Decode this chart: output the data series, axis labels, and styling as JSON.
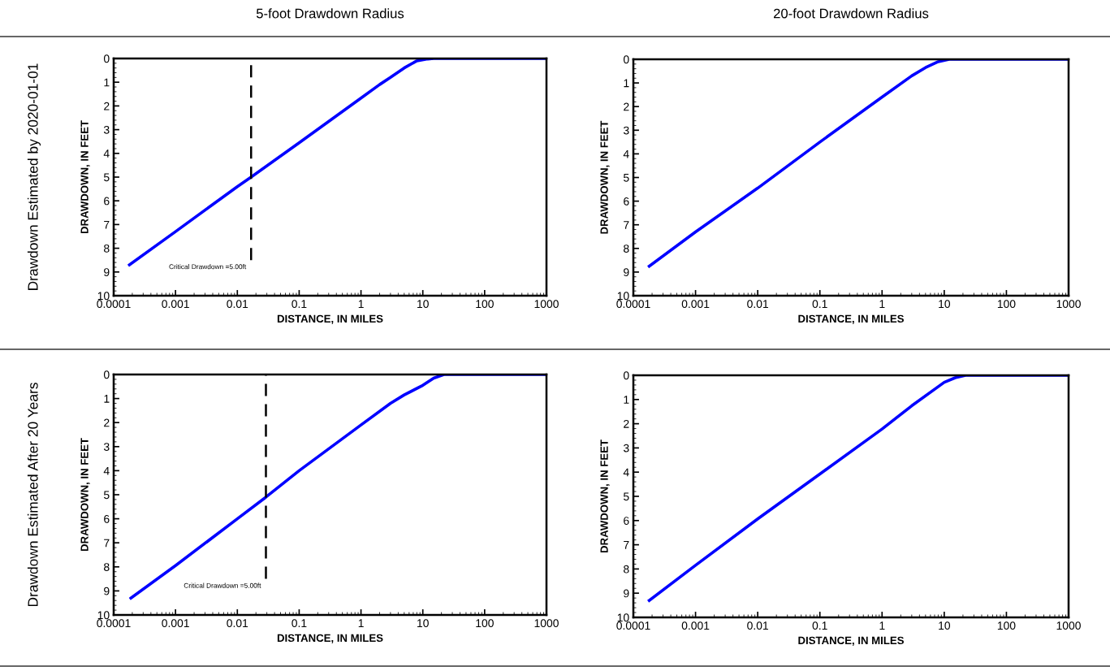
{
  "chart_data": [
    {
      "type": "line",
      "title": "5-foot Drawdown Radius",
      "xlabel": "DISTANCE, IN MILES",
      "ylabel": "DRAWDOWN, IN FEET",
      "annotations": [
        "Drawdown Estimated by 2020-01-01",
        "Critical Drawdown =5.00ft"
      ],
      "log": "x",
      "xlim": [
        0.0001,
        1000
      ],
      "xticks": [
        0.0001,
        0.001,
        0.01,
        0.1,
        1,
        10,
        100,
        1000
      ],
      "ylim": [
        10,
        0
      ],
      "yticks": [
        0,
        1,
        2,
        3,
        4,
        5,
        6,
        7,
        8,
        9,
        10
      ],
      "grid": false,
      "legend": false,
      "marker": "none",
      "line_style": "solid",
      "series": [
        {
          "color": "#0000ff",
          "x": [
            0.00018,
            0.001,
            0.01,
            0.0167,
            0.1,
            1,
            2,
            3,
            5,
            8,
            12,
            15,
            1000
          ],
          "values": [
            8.7,
            7.3,
            5.4,
            5.0,
            3.55,
            1.67,
            1.1,
            0.8,
            0.4,
            0.1,
            0.02,
            0,
            0
          ]
        }
      ],
      "ref_lines": [
        {
          "axis": "x",
          "value": 0.0167,
          "color": "#000000",
          "line_style": "dashed"
        }
      ]
    },
    {
      "type": "line",
      "title": "20-foot Drawdown Radius",
      "xlabel": "DISTANCE, IN MILES",
      "ylabel": "DRAWDOWN, IN FEET",
      "log": "x",
      "xlim": [
        0.0001,
        1000
      ],
      "xticks": [
        0.0001,
        0.001,
        0.01,
        0.1,
        1,
        10,
        100,
        1000
      ],
      "ylim": [
        10,
        0
      ],
      "yticks": [
        0,
        1,
        2,
        3,
        4,
        5,
        6,
        7,
        8,
        9,
        10
      ],
      "grid": false,
      "legend": false,
      "marker": "none",
      "line_style": "solid",
      "series": [
        {
          "color": "#0000ff",
          "x": [
            0.00018,
            0.001,
            0.01,
            0.1,
            1,
            3,
            5,
            8,
            12,
            1000
          ],
          "values": [
            8.75,
            7.3,
            5.45,
            3.5,
            1.6,
            0.7,
            0.35,
            0.1,
            0,
            0
          ]
        }
      ]
    },
    {
      "type": "line",
      "xlabel": "DISTANCE, IN MILES",
      "ylabel": "DRAWDOWN, IN FEET",
      "annotations": [
        "Drawdown Estimated After 20 Years",
        "Critical Drawdown =5.00ft"
      ],
      "log": "x",
      "xlim": [
        0.0001,
        1000
      ],
      "xticks": [
        0.0001,
        0.001,
        0.01,
        0.1,
        1,
        10,
        100,
        1000
      ],
      "ylim": [
        10,
        0
      ],
      "yticks": [
        0,
        1,
        2,
        3,
        4,
        5,
        6,
        7,
        8,
        9,
        10
      ],
      "grid": false,
      "legend": false,
      "marker": "none",
      "line_style": "solid",
      "series": [
        {
          "color": "#0000ff",
          "x": [
            0.00019,
            0.001,
            0.01,
            0.029,
            0.1,
            1,
            3,
            5,
            10,
            15,
            22,
            1000
          ],
          "values": [
            9.3,
            7.95,
            6.0,
            5.1,
            4.0,
            2.1,
            1.2,
            0.85,
            0.45,
            0.15,
            0,
            0
          ]
        }
      ],
      "ref_lines": [
        {
          "axis": "x",
          "value": 0.029,
          "color": "#000000",
          "line_style": "dashed"
        }
      ]
    },
    {
      "type": "line",
      "xlabel": "DISTANCE, IN MILES",
      "ylabel": "DRAWDOWN, IN FEET",
      "log": "x",
      "xlim": [
        0.0001,
        1000
      ],
      "xticks": [
        0.0001,
        0.001,
        0.01,
        0.1,
        1,
        10,
        100,
        1000
      ],
      "ylim": [
        10,
        0
      ],
      "yticks": [
        0,
        1,
        2,
        3,
        4,
        5,
        6,
        7,
        8,
        9,
        10
      ],
      "grid": false,
      "legend": false,
      "marker": "none",
      "line_style": "solid",
      "series": [
        {
          "color": "#0000ff",
          "x": [
            0.00018,
            0.001,
            0.01,
            0.1,
            1,
            3,
            10,
            15,
            22,
            1000
          ],
          "values": [
            9.3,
            7.85,
            5.93,
            4.08,
            2.22,
            1.26,
            0.29,
            0.1,
            0,
            0
          ]
        }
      ]
    }
  ]
}
